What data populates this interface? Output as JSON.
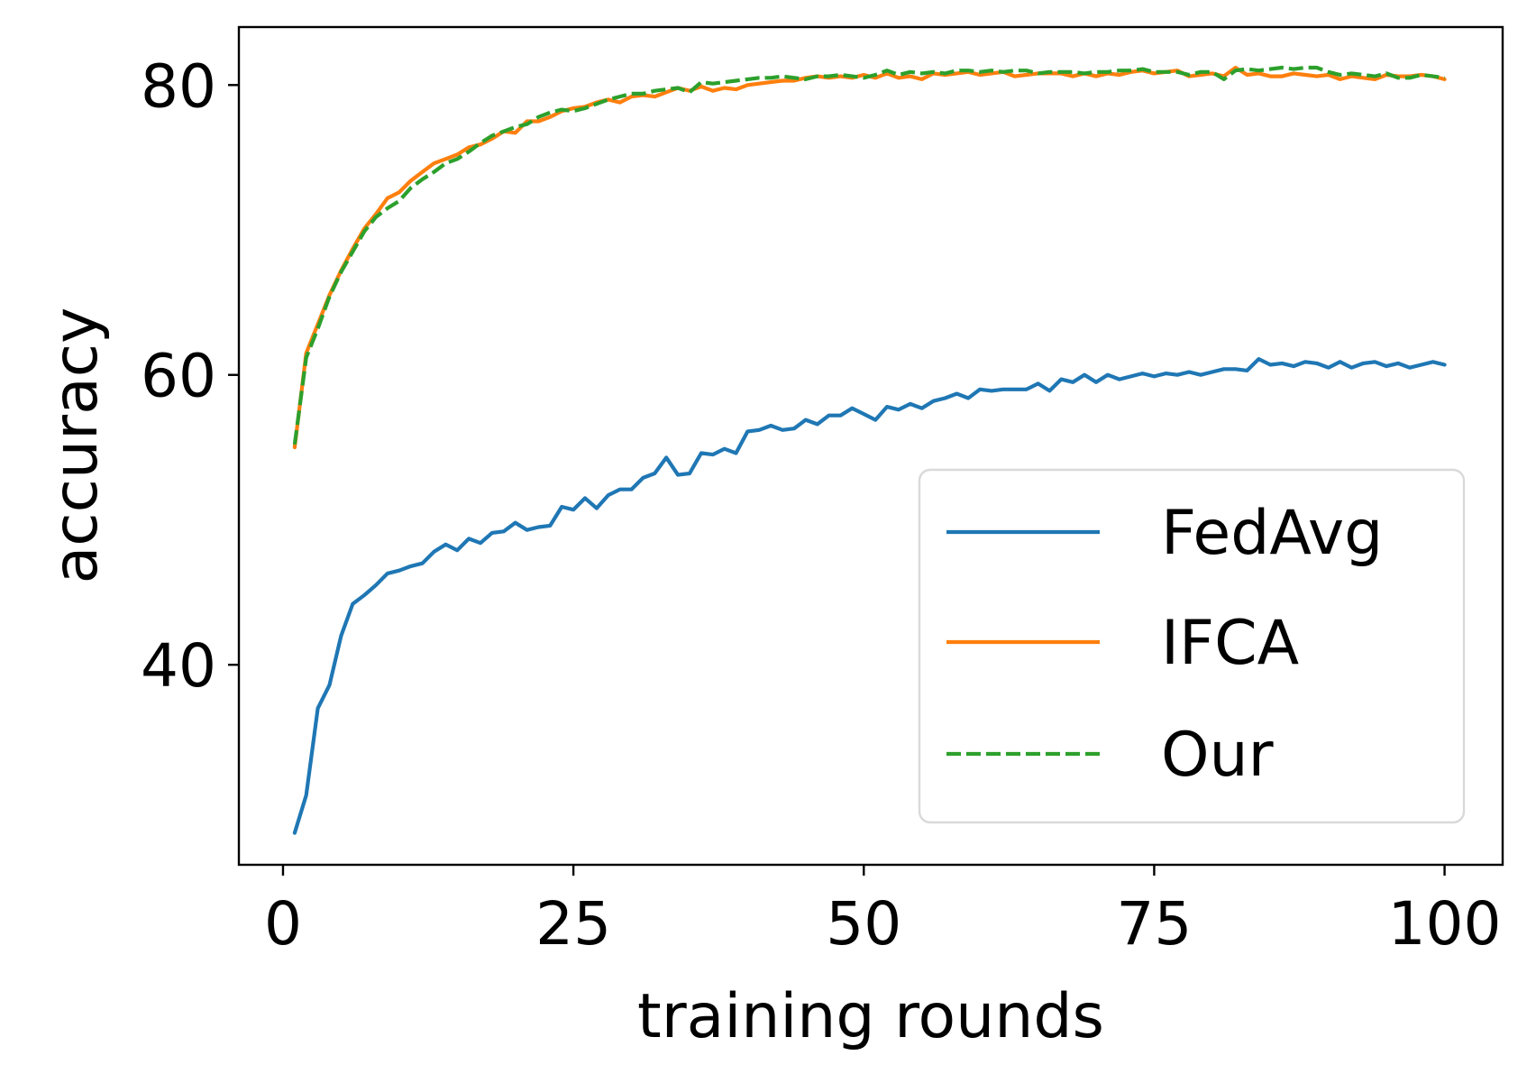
{
  "chart_data": {
    "type": "line",
    "title": "",
    "xlabel": "training rounds",
    "ylabel": "accuracy",
    "xlim": [
      -3.8,
      105
    ],
    "ylim": [
      26.2,
      84
    ],
    "xticks": [
      0,
      25,
      50,
      75,
      100
    ],
    "yticks": [
      40,
      60,
      80
    ],
    "grid": false,
    "legend_position": "lower-right",
    "series": [
      {
        "name": "FedAvg",
        "color": "#1f77b4",
        "dash": "solid",
        "x": [
          1,
          2,
          3,
          4,
          5,
          6,
          7,
          8,
          9,
          10,
          11,
          12,
          13,
          14,
          15,
          16,
          17,
          18,
          19,
          20,
          21,
          22,
          23,
          24,
          25,
          26,
          27,
          28,
          29,
          30,
          31,
          32,
          33,
          34,
          35,
          36,
          37,
          38,
          39,
          40,
          41,
          42,
          43,
          44,
          45,
          46,
          47,
          48,
          49,
          50,
          51,
          52,
          53,
          54,
          55,
          56,
          57,
          58,
          59,
          60,
          61,
          62,
          63,
          64,
          65,
          66,
          67,
          68,
          69,
          70,
          71,
          72,
          73,
          74,
          75,
          76,
          77,
          78,
          79,
          80,
          81,
          82,
          83,
          84,
          85,
          86,
          87,
          88,
          89,
          90,
          91,
          92,
          93,
          94,
          95,
          96,
          97,
          98,
          99,
          100
        ],
        "y": [
          28.4,
          31.0,
          37.0,
          38.6,
          42.0,
          44.2,
          44.8,
          45.5,
          46.3,
          46.5,
          46.8,
          47.0,
          47.8,
          48.3,
          47.9,
          48.7,
          48.4,
          49.1,
          49.2,
          49.8,
          49.3,
          49.5,
          49.6,
          50.9,
          50.7,
          51.5,
          50.8,
          51.7,
          52.1,
          52.1,
          52.9,
          53.2,
          54.3,
          53.1,
          53.2,
          54.6,
          54.5,
          54.9,
          54.6,
          56.1,
          56.2,
          56.5,
          56.2,
          56.3,
          56.9,
          56.6,
          57.2,
          57.2,
          57.7,
          57.3,
          56.9,
          57.8,
          57.6,
          58.0,
          57.7,
          58.2,
          58.4,
          58.7,
          58.4,
          59.0,
          58.9,
          59.0,
          59.0,
          59.0,
          59.4,
          58.9,
          59.7,
          59.5,
          60.0,
          59.5,
          60.0,
          59.7,
          59.9,
          60.1,
          59.9,
          60.1,
          60.0,
          60.2,
          60.0,
          60.2,
          60.4,
          60.4,
          60.3,
          61.1,
          60.7,
          60.8,
          60.6,
          60.9,
          60.8,
          60.5,
          60.9,
          60.5,
          60.8,
          60.9,
          60.6,
          60.8,
          60.5,
          60.7,
          60.9,
          60.7
        ]
      },
      {
        "name": "IFCA",
        "color": "#ff7f0e",
        "dash": "solid",
        "x": [
          1,
          2,
          3,
          4,
          5,
          6,
          7,
          8,
          9,
          10,
          11,
          12,
          13,
          14,
          15,
          16,
          17,
          18,
          19,
          20,
          21,
          22,
          23,
          24,
          25,
          26,
          27,
          28,
          29,
          30,
          31,
          32,
          33,
          34,
          35,
          36,
          37,
          38,
          39,
          40,
          41,
          42,
          43,
          44,
          45,
          46,
          47,
          48,
          49,
          50,
          51,
          52,
          53,
          54,
          55,
          56,
          57,
          58,
          59,
          60,
          61,
          62,
          63,
          64,
          65,
          66,
          67,
          68,
          69,
          70,
          71,
          72,
          73,
          74,
          75,
          76,
          77,
          78,
          79,
          80,
          81,
          82,
          83,
          84,
          85,
          86,
          87,
          88,
          89,
          90,
          91,
          92,
          93,
          94,
          95,
          96,
          97,
          98,
          99,
          100
        ],
        "y": [
          55.0,
          61.5,
          63.5,
          65.5,
          67.2,
          68.7,
          70.1,
          71.1,
          72.2,
          72.6,
          73.4,
          74.0,
          74.6,
          74.9,
          75.2,
          75.7,
          75.9,
          76.3,
          76.8,
          76.7,
          77.5,
          77.5,
          77.8,
          78.2,
          78.4,
          78.5,
          78.8,
          79.0,
          78.8,
          79.2,
          79.3,
          79.2,
          79.5,
          79.8,
          79.6,
          79.9,
          79.6,
          79.8,
          79.7,
          80.0,
          80.1,
          80.2,
          80.3,
          80.3,
          80.5,
          80.6,
          80.5,
          80.6,
          80.5,
          80.7,
          80.5,
          80.8,
          80.5,
          80.6,
          80.4,
          80.8,
          80.7,
          80.8,
          80.9,
          80.7,
          80.8,
          80.9,
          80.6,
          80.7,
          80.8,
          80.8,
          80.8,
          80.6,
          80.8,
          80.6,
          80.8,
          80.7,
          80.9,
          81.0,
          80.8,
          80.9,
          81.0,
          80.6,
          80.7,
          80.8,
          80.6,
          81.2,
          80.7,
          80.8,
          80.6,
          80.6,
          80.8,
          80.7,
          80.6,
          80.7,
          80.4,
          80.6,
          80.5,
          80.4,
          80.7,
          80.6,
          80.6,
          80.7,
          80.6,
          80.4
        ]
      },
      {
        "name": "Our",
        "color": "#2ca02c",
        "dash": "dashed",
        "x": [
          1,
          2,
          3,
          4,
          5,
          6,
          7,
          8,
          9,
          10,
          11,
          12,
          13,
          14,
          15,
          16,
          17,
          18,
          19,
          20,
          21,
          22,
          23,
          24,
          25,
          26,
          27,
          28,
          29,
          30,
          31,
          32,
          33,
          34,
          35,
          36,
          37,
          38,
          39,
          40,
          41,
          42,
          43,
          44,
          45,
          46,
          47,
          48,
          49,
          50,
          51,
          52,
          53,
          54,
          55,
          56,
          57,
          58,
          59,
          60,
          61,
          62,
          63,
          64,
          65,
          66,
          67,
          68,
          69,
          70,
          71,
          72,
          73,
          74,
          75,
          76,
          77,
          78,
          79,
          80,
          81,
          82,
          83,
          84,
          85,
          86,
          87,
          88,
          89,
          90,
          91,
          92,
          93,
          94,
          95,
          96,
          97,
          98,
          99,
          100
        ],
        "y": [
          55.2,
          61.2,
          63.2,
          65.4,
          67.1,
          68.5,
          69.9,
          70.9,
          71.5,
          72.0,
          72.9,
          73.5,
          74.0,
          74.6,
          74.9,
          75.4,
          76.0,
          76.5,
          76.8,
          77.1,
          77.3,
          77.8,
          78.1,
          78.3,
          78.2,
          78.4,
          78.7,
          79.0,
          79.2,
          79.4,
          79.4,
          79.6,
          79.7,
          79.8,
          79.5,
          80.2,
          80.1,
          80.2,
          80.3,
          80.4,
          80.5,
          80.5,
          80.6,
          80.5,
          80.4,
          80.6,
          80.6,
          80.7,
          80.6,
          80.5,
          80.7,
          81.0,
          80.7,
          80.9,
          80.8,
          80.9,
          80.8,
          81.0,
          81.0,
          80.9,
          81.0,
          80.9,
          81.0,
          81.0,
          80.8,
          80.9,
          80.9,
          80.9,
          80.8,
          80.9,
          80.9,
          81.0,
          81.0,
          81.1,
          80.9,
          80.9,
          80.9,
          80.7,
          80.9,
          80.9,
          80.4,
          81.0,
          81.1,
          81.0,
          81.1,
          81.2,
          81.1,
          81.2,
          81.2,
          80.9,
          80.7,
          80.8,
          80.7,
          80.6,
          80.8,
          80.5,
          80.5,
          80.7,
          80.6,
          80.5
        ]
      }
    ]
  }
}
